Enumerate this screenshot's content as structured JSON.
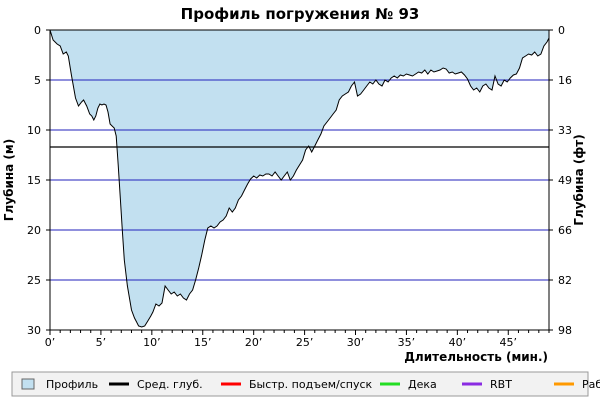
{
  "chart_data": {
    "type": "area",
    "title": "Профиль погружения № 93",
    "xlabel": "Длительность (мин.)",
    "ylabel_left": "Глубина (м)",
    "ylabel_right": "Глубина (фт)",
    "xlim": [
      0,
      49
    ],
    "ylim": [
      30,
      0
    ],
    "y_inverted": true,
    "grid": true,
    "x_ticks": [
      "0’",
      "5’",
      "10’",
      "15’",
      "20’",
      "25’",
      "30’",
      "35’",
      "40’",
      "45’"
    ],
    "y_ticks_left": [
      "0",
      "5",
      "10",
      "15",
      "20",
      "25",
      "30"
    ],
    "y_ticks_right": [
      "0",
      "16",
      "33",
      "49",
      "66",
      "82",
      "98"
    ],
    "average_depth": 11.7,
    "colors": {
      "profile_fill": "#c2e0f0",
      "profile_line": "#000000",
      "grid": "#2222bb",
      "avg_line": "#000000",
      "fast_ascent": "#ff0000",
      "deco": "#22dd22",
      "rbt": "#8a2be2",
      "warn": "#ff9900"
    },
    "series": [
      {
        "name": "Профиль",
        "x": [
          0,
          0.3,
          0.7,
          1.0,
          1.3,
          1.6,
          1.8,
          2.1,
          2.5,
          2.8,
          3.1,
          3.3,
          3.6,
          3.9,
          4.1,
          4.3,
          4.5,
          4.7,
          4.9,
          5.1,
          5.3,
          5.5,
          5.7,
          5.9,
          6.1,
          6.3,
          6.5,
          6.7,
          6.9,
          7.1,
          7.3,
          7.6,
          8.0,
          8.3,
          8.5,
          8.7,
          9.0,
          9.3,
          9.6,
          9.9,
          10.1,
          10.4,
          10.7,
          11.0,
          11.3,
          11.6,
          11.9,
          12.2,
          12.5,
          12.8,
          13.1,
          13.4,
          13.7,
          14.0,
          14.3,
          14.6,
          14.9,
          15.2,
          15.5,
          15.8,
          16.1,
          16.4,
          16.7,
          17.0,
          17.3,
          17.6,
          17.9,
          18.2,
          18.5,
          18.8,
          19.1,
          19.4,
          19.7,
          20.0,
          20.3,
          20.6,
          20.9,
          21.2,
          21.5,
          21.8,
          22.1,
          22.4,
          22.7,
          23.0,
          23.3,
          23.6,
          23.9,
          24.2,
          24.5,
          24.8,
          25.1,
          25.4,
          25.7,
          26.0,
          26.3,
          26.6,
          26.9,
          27.2,
          27.5,
          27.8,
          28.1,
          28.4,
          28.7,
          29.0,
          29.3,
          29.6,
          29.9,
          30.2,
          30.5,
          30.8,
          31.1,
          31.4,
          31.7,
          32.0,
          32.3,
          32.6,
          32.9,
          33.2,
          33.5,
          33.8,
          34.1,
          34.4,
          34.7,
          35.0,
          35.3,
          35.6,
          35.9,
          36.2,
          36.5,
          36.8,
          37.1,
          37.4,
          37.7,
          38.0,
          38.3,
          38.6,
          38.9,
          39.2,
          39.5,
          39.8,
          40.1,
          40.4,
          40.7,
          41.0,
          41.3,
          41.6,
          41.9,
          42.2,
          42.5,
          42.8,
          43.1,
          43.4,
          43.7,
          44.0,
          44.3,
          44.6,
          44.9,
          45.2,
          45.5,
          45.8,
          46.1,
          46.4,
          46.7,
          47.0,
          47.3,
          47.6,
          47.9,
          48.2,
          48.5,
          48.8,
          49.0
        ],
        "depth_m": [
          0.0,
          1.0,
          1.4,
          1.6,
          2.4,
          2.2,
          2.6,
          4.5,
          6.8,
          7.6,
          7.2,
          7.0,
          7.6,
          8.4,
          8.6,
          9.0,
          8.6,
          7.8,
          7.4,
          7.5,
          7.4,
          7.5,
          8.2,
          9.4,
          9.6,
          9.8,
          10.6,
          13.5,
          16.8,
          20.0,
          23.0,
          25.6,
          28.0,
          28.8,
          29.2,
          29.6,
          29.7,
          29.6,
          29.1,
          28.6,
          28.2,
          27.4,
          27.6,
          27.3,
          25.6,
          26.0,
          26.4,
          26.2,
          26.6,
          26.4,
          26.8,
          27.0,
          26.4,
          26.0,
          25.0,
          23.8,
          22.5,
          21.0,
          19.8,
          19.6,
          19.8,
          19.6,
          19.2,
          19.0,
          18.6,
          17.8,
          18.2,
          17.8,
          17.0,
          16.6,
          16.0,
          15.4,
          14.9,
          14.6,
          14.8,
          14.5,
          14.6,
          14.4,
          14.4,
          14.6,
          14.2,
          14.6,
          15.0,
          14.6,
          14.2,
          15.0,
          14.6,
          14.0,
          13.5,
          13.0,
          12.0,
          11.6,
          12.2,
          11.6,
          11.0,
          10.4,
          9.6,
          9.2,
          8.8,
          8.4,
          8.0,
          7.0,
          6.6,
          6.4,
          6.2,
          5.6,
          5.2,
          6.6,
          6.4,
          6.0,
          5.6,
          5.2,
          5.4,
          5.0,
          5.4,
          5.6,
          5.0,
          5.2,
          4.8,
          4.6,
          4.8,
          4.5,
          4.6,
          4.4,
          4.5,
          4.6,
          4.4,
          4.2,
          4.3,
          4.0,
          4.4,
          4.0,
          4.2,
          4.1,
          4.0,
          3.8,
          3.9,
          4.3,
          4.2,
          4.4,
          4.3,
          4.2,
          4.5,
          4.9,
          5.6,
          6.0,
          5.8,
          6.2,
          5.6,
          5.4,
          5.8,
          6.0,
          4.6,
          5.4,
          5.6,
          5.0,
          5.2,
          4.8,
          4.5,
          4.4,
          3.8,
          2.8,
          2.6,
          2.4,
          2.5,
          2.2,
          2.6,
          2.4,
          1.6,
          1.2,
          0.8,
          0.0
        ]
      }
    ],
    "legend": {
      "position": "bottom",
      "items": [
        {
          "label": "Профиль",
          "symbol": "box",
          "color": "#c2e0f0"
        },
        {
          "label": "Сред. глуб.",
          "symbol": "line",
          "color": "#000000"
        },
        {
          "label": "Быстр. подъем/спуск",
          "symbol": "line",
          "color": "#ff0000"
        },
        {
          "label": "Дека",
          "symbol": "line",
          "color": "#22dd22"
        },
        {
          "label": "RBT",
          "symbol": "line",
          "color": "#8a2be2"
        },
        {
          "label": "Раб.",
          "symbol": "line",
          "color": "#ff9900"
        }
      ]
    }
  }
}
